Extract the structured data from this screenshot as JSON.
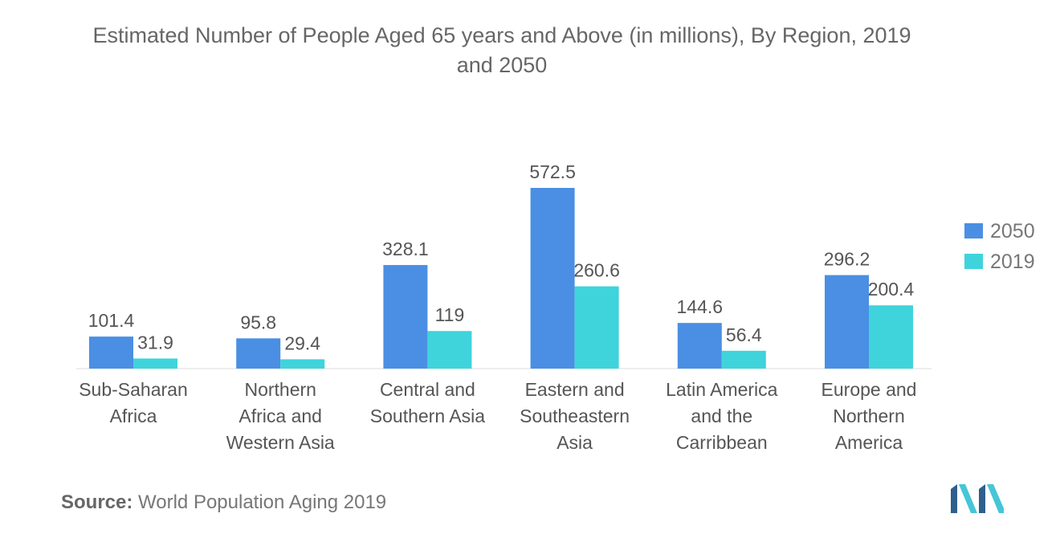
{
  "chart_data": {
    "type": "bar",
    "title": "Estimated Number of People Aged 65 years and Above (in millions), By Region, 2019 and 2050",
    "categories": [
      [
        "Sub-Saharan",
        "Africa"
      ],
      [
        "Northern",
        "Africa and",
        "Western Asia"
      ],
      [
        "Central and",
        "Southern Asia"
      ],
      [
        "Eastern and",
        "Southeastern",
        "Asia"
      ],
      [
        "Latin America",
        "and the",
        "Carribbean"
      ],
      [
        "Europe and",
        "Northern",
        "America"
      ]
    ],
    "series": [
      {
        "name": "2050",
        "color": "#4a8fe3",
        "values": [
          101.4,
          95.8,
          328.1,
          572.5,
          144.6,
          296.2
        ],
        "labels": [
          "101.4",
          "95.8",
          "328.1",
          "572.5",
          "144.6",
          "296.2"
        ]
      },
      {
        "name": "2019",
        "color": "#3fd3dc",
        "values": [
          31.9,
          29.4,
          119,
          260.6,
          56.4,
          200.4
        ],
        "labels": [
          "31.9",
          "29.4",
          "119",
          "260.6",
          "56.4",
          "200.4"
        ]
      }
    ],
    "ylim": [
      0,
      600
    ],
    "legend": "right",
    "grid": false
  },
  "source": {
    "label": "Source:",
    "text": "World Population Aging 2019"
  },
  "logo": {
    "icon": "mordor-intelligence-logo-icon"
  }
}
